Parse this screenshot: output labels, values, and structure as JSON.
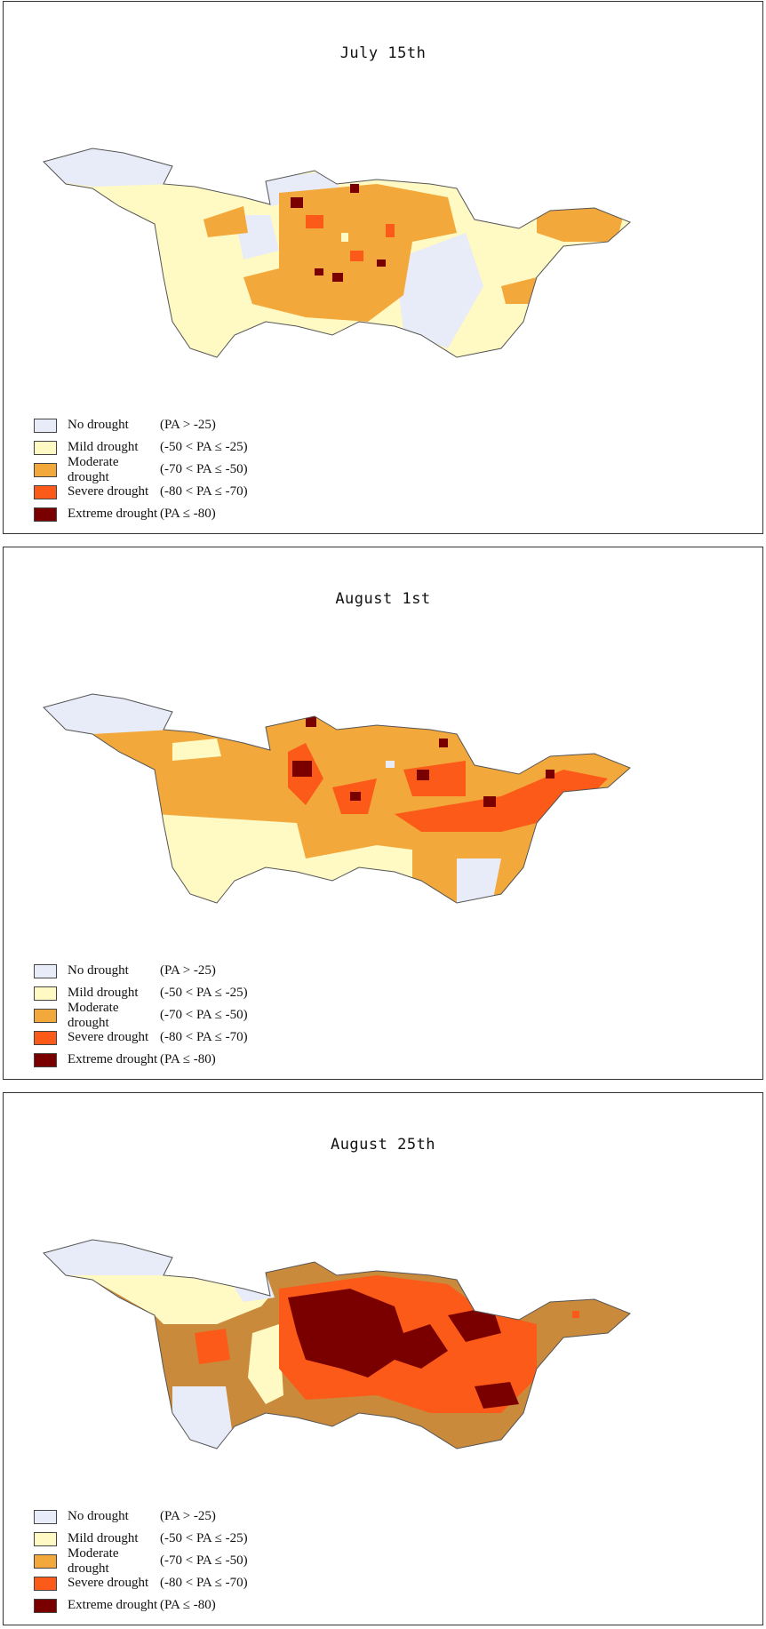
{
  "colors": {
    "none": "#e8ebf8",
    "mild": "#fff9c4",
    "moderate": "#f2a83a",
    "severe": "#fc5a19",
    "extreme": "#7a0000",
    "moderate_aug25": "#c98a3c",
    "outline": "#555555"
  },
  "legend": [
    {
      "key": "none",
      "name": "No drought",
      "range": "(PA > -25)"
    },
    {
      "key": "mild",
      "name": "Mild drought",
      "range": "(-50 < PA ≤ -25)"
    },
    {
      "key": "moderate",
      "name": "Moderate drought",
      "range": "(-70 < PA ≤ -50)"
    },
    {
      "key": "severe",
      "name": "Severe drought",
      "range": "(-80 < PA ≤ -70)"
    },
    {
      "key": "extreme",
      "name": "Extreme drought",
      "range": "(PA ≤ -80)"
    }
  ],
  "panels": [
    {
      "title": "July 15th",
      "drought_level": "moderate-dominant"
    },
    {
      "title": "August 1st",
      "drought_level": "moderate-severe"
    },
    {
      "title": "August 25th",
      "drought_level": "severe-extreme"
    }
  ]
}
